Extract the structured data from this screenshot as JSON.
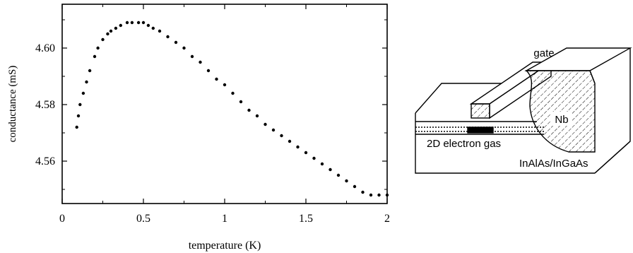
{
  "chart_data": {
    "type": "scatter",
    "xlabel": "temperature (K)",
    "ylabel": "conductance (mS)",
    "xlim": [
      0,
      2
    ],
    "ylim": [
      4.545,
      4.6155
    ],
    "xticks": [
      0,
      0.5,
      1,
      1.5,
      2
    ],
    "xtick_labels": [
      "0",
      "0.5",
      "1",
      "1.5",
      "2"
    ],
    "yticks": [
      4.56,
      4.58,
      4.6
    ],
    "ytick_labels": [
      "4.56",
      "4.58",
      "4.60"
    ],
    "grid": false,
    "series": [
      {
        "color": "#000000",
        "x": [
          0.09,
          0.1,
          0.11,
          0.13,
          0.15,
          0.17,
          0.2,
          0.22,
          0.25,
          0.28,
          0.3,
          0.33,
          0.36,
          0.4,
          0.43,
          0.47,
          0.5,
          0.53,
          0.56,
          0.6,
          0.65,
          0.7,
          0.75,
          0.8,
          0.85,
          0.9,
          0.95,
          1.0,
          1.05,
          1.1,
          1.15,
          1.2,
          1.25,
          1.3,
          1.35,
          1.4,
          1.45,
          1.5,
          1.55,
          1.6,
          1.65,
          1.7,
          1.75,
          1.8,
          1.85,
          1.9,
          1.95,
          2.0
        ],
        "y": [
          4.572,
          4.576,
          4.58,
          4.584,
          4.588,
          4.592,
          4.597,
          4.6,
          4.603,
          4.605,
          4.606,
          4.607,
          4.608,
          4.609,
          4.609,
          4.609,
          4.609,
          4.608,
          4.607,
          4.606,
          4.604,
          4.602,
          4.6,
          4.597,
          4.595,
          4.592,
          4.589,
          4.587,
          4.584,
          4.581,
          4.578,
          4.576,
          4.573,
          4.571,
          4.569,
          4.567,
          4.565,
          4.563,
          4.561,
          4.559,
          4.557,
          4.555,
          4.553,
          4.551,
          4.549,
          4.548,
          4.548,
          4.548
        ]
      }
    ]
  },
  "diagram": {
    "labels": {
      "gate": "gate",
      "nb": "Nb",
      "electron_gas": "2D electron gas",
      "substrate": "InAlAs/InGaAs"
    }
  }
}
